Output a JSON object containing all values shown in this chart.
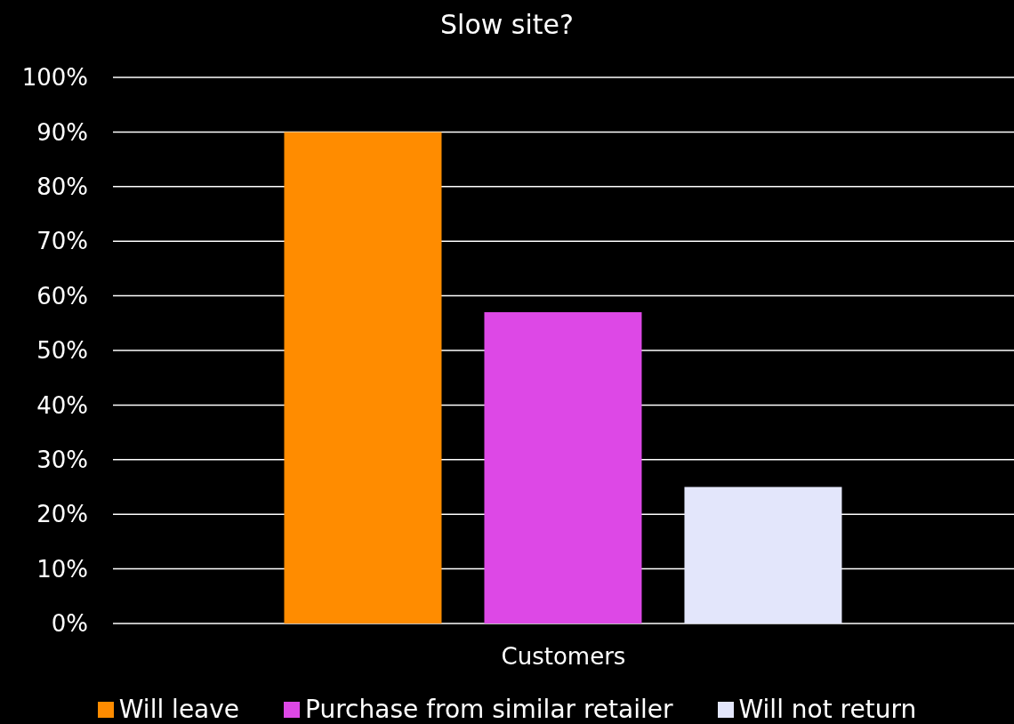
{
  "chart_data": {
    "type": "bar",
    "title": "Slow site?",
    "categories": [
      "Customers"
    ],
    "series": [
      {
        "name": "Will leave",
        "color": "#ff8c00",
        "values": [
          90
        ]
      },
      {
        "name": "Purchase from similar retailer",
        "color": "#dd48e6",
        "values": [
          57
        ]
      },
      {
        "name": "Will not return",
        "color": "#e3e6fb",
        "values": [
          25
        ]
      }
    ],
    "ylim": [
      0,
      100
    ],
    "yticks": [
      {
        "value": 0,
        "label": "0%"
      },
      {
        "value": 10,
        "label": "10%"
      },
      {
        "value": 20,
        "label": "20%"
      },
      {
        "value": 30,
        "label": "30%"
      },
      {
        "value": 40,
        "label": "40%"
      },
      {
        "value": 50,
        "label": "50%"
      },
      {
        "value": 60,
        "label": "60%"
      },
      {
        "value": 70,
        "label": "70%"
      },
      {
        "value": 80,
        "label": "80%"
      },
      {
        "value": 90,
        "label": "90%"
      },
      {
        "value": 100,
        "label": "100%"
      }
    ],
    "grid": "y",
    "legend": "bottom"
  }
}
